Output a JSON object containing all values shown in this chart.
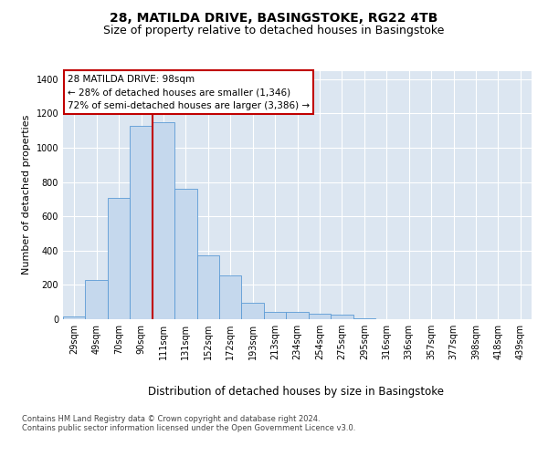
{
  "title1": "28, MATILDA DRIVE, BASINGSTOKE, RG22 4TB",
  "title2": "Size of property relative to detached houses in Basingstoke",
  "xlabel": "Distribution of detached houses by size in Basingstoke",
  "ylabel": "Number of detached properties",
  "footnote": "Contains HM Land Registry data © Crown copyright and database right 2024.\nContains public sector information licensed under the Open Government Licence v3.0.",
  "categories": [
    "29sqm",
    "49sqm",
    "70sqm",
    "90sqm",
    "111sqm",
    "131sqm",
    "152sqm",
    "172sqm",
    "193sqm",
    "213sqm",
    "234sqm",
    "254sqm",
    "275sqm",
    "295sqm",
    "316sqm",
    "336sqm",
    "357sqm",
    "377sqm",
    "398sqm",
    "418sqm",
    "439sqm"
  ],
  "values": [
    15,
    230,
    710,
    1130,
    1150,
    760,
    370,
    255,
    95,
    45,
    40,
    32,
    25,
    5,
    0,
    0,
    0,
    0,
    0,
    0,
    0
  ],
  "bar_color": "#c5d8ed",
  "bar_edge_color": "#5b9bd5",
  "background_color": "#dce6f1",
  "grid_color": "#ffffff",
  "ylim_min": 0,
  "ylim_max": 1450,
  "yticks": [
    0,
    200,
    400,
    600,
    800,
    1000,
    1200,
    1400
  ],
  "vline_x": 3.5,
  "vline_color": "#c00000",
  "annotation_line1": "28 MATILDA DRIVE: 98sqm",
  "annotation_line2": "← 28% of detached houses are smaller (1,346)",
  "annotation_line3": "72% of semi-detached houses are larger (3,386) →",
  "annotation_box_facecolor": "#ffffff",
  "annotation_box_edgecolor": "#c00000",
  "title_fontsize": 10,
  "subtitle_fontsize": 9,
  "tick_fontsize": 7,
  "xlabel_fontsize": 8.5,
  "ylabel_fontsize": 8,
  "annotation_fontsize": 7.5,
  "footnote_fontsize": 6
}
